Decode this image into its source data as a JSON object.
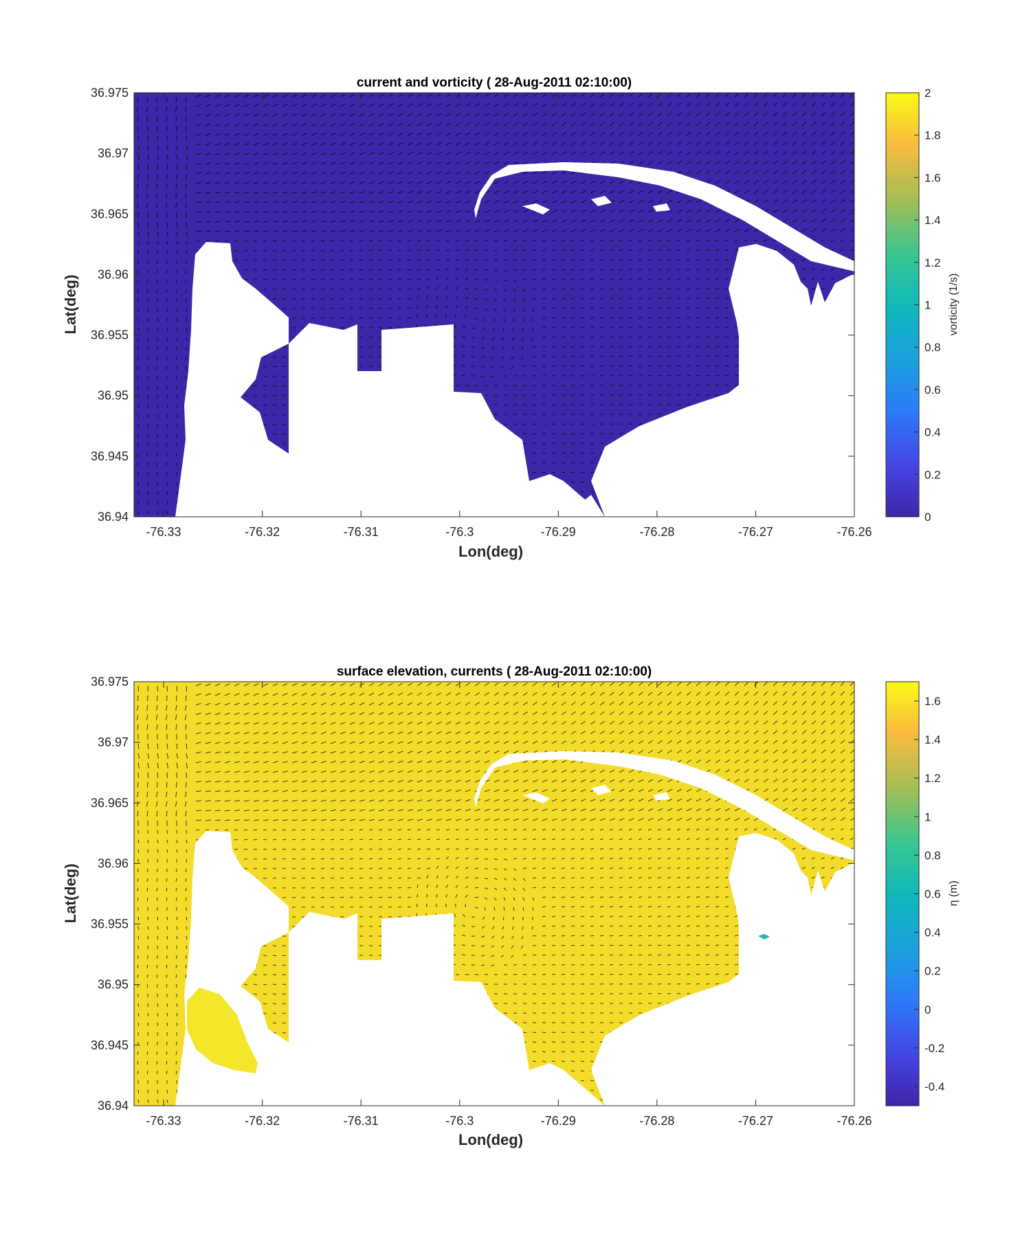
{
  "chart_data": [
    {
      "type": "heatmap",
      "title": "current and vorticity ( 28-Aug-2011 02:10:00)",
      "xlabel": "Lon(deg)",
      "ylabel": "Lat(deg)",
      "xlim": [
        -76.333,
        -76.26
      ],
      "ylim": [
        36.94,
        36.975
      ],
      "xticks": [
        "-76.33",
        "-76.32",
        "-76.31",
        "-76.3",
        "-76.29",
        "-76.28",
        "-76.27",
        "-76.26"
      ],
      "xtick_values": [
        -76.33,
        -76.32,
        -76.31,
        -76.3,
        -76.29,
        -76.28,
        -76.27,
        -76.26
      ],
      "yticks": [
        "36.94",
        "36.945",
        "36.95",
        "36.955",
        "36.96",
        "36.965",
        "36.97",
        "36.975"
      ],
      "ytick_values": [
        36.94,
        36.945,
        36.95,
        36.955,
        36.96,
        36.965,
        36.97,
        36.975
      ],
      "field_value": 0,
      "overlay": "current vectors",
      "colorbar": {
        "label": "vorticity (1/s)",
        "clim": [
          0,
          2
        ],
        "ticks": [
          "0",
          "0.2",
          "0.4",
          "0.6",
          "0.8",
          "1",
          "1.2",
          "1.4",
          "1.6",
          "1.8",
          "2"
        ],
        "tick_values": [
          0,
          0.2,
          0.4,
          0.6,
          0.8,
          1,
          1.2,
          1.4,
          1.6,
          1.8,
          2
        ],
        "colormap": "parula"
      }
    },
    {
      "type": "heatmap",
      "title": "surface elevation, currents ( 28-Aug-2011 02:10:00)",
      "xlabel": "Lon(deg)",
      "ylabel": "Lat(deg)",
      "xlim": [
        -76.333,
        -76.26
      ],
      "ylim": [
        36.94,
        36.975
      ],
      "xticks": [
        "-76.33",
        "-76.32",
        "-76.31",
        "-76.3",
        "-76.29",
        "-76.28",
        "-76.27",
        "-76.26"
      ],
      "xtick_values": [
        -76.33,
        -76.32,
        -76.31,
        -76.3,
        -76.29,
        -76.28,
        -76.27,
        -76.26
      ],
      "yticks": [
        "36.94",
        "36.945",
        "36.95",
        "36.955",
        "36.96",
        "36.965",
        "36.97",
        "36.975"
      ],
      "ytick_values": [
        36.94,
        36.945,
        36.95,
        36.955,
        36.96,
        36.965,
        36.97,
        36.975
      ],
      "field_value": 1.65,
      "overlay": "current vectors",
      "colorbar": {
        "label": "η (m)",
        "clim": [
          -0.5,
          1.7
        ],
        "ticks": [
          "-0.4",
          "-0.2",
          "0",
          "0.2",
          "0.4",
          "0.6",
          "0.8",
          "1",
          "1.2",
          "1.4",
          "1.6"
        ],
        "tick_values": [
          -0.4,
          -0.2,
          0,
          0.2,
          0.4,
          0.6,
          0.8,
          1,
          1.2,
          1.4,
          1.6
        ],
        "colormap": "parula"
      }
    }
  ]
}
